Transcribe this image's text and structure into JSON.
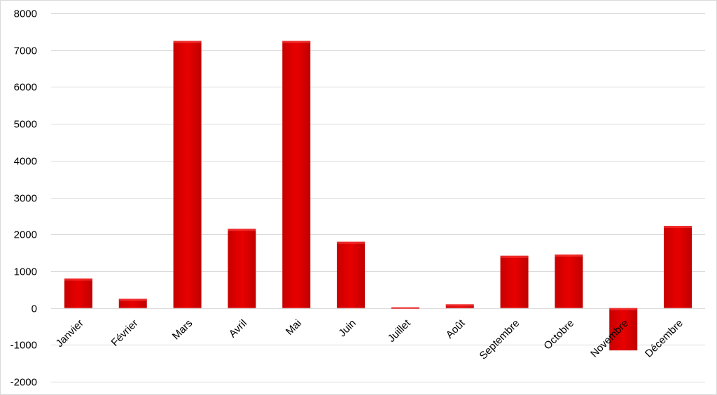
{
  "chart_data": {
    "type": "bar",
    "title": "",
    "xlabel": "",
    "ylabel": "",
    "categories": [
      "Janvier",
      "Février",
      "Mars",
      "Avril",
      "Mai",
      "Juin",
      "Juillet",
      "Août",
      "Septembre",
      "Octobre",
      "Novembre",
      "Décembre"
    ],
    "values": [
      800,
      250,
      7250,
      2150,
      7250,
      1800,
      -30,
      100,
      1420,
      1450,
      -1150,
      2230
    ],
    "ylim": [
      -2000,
      8000
    ],
    "yticks": [
      8000,
      7000,
      6000,
      5000,
      4000,
      3000,
      2000,
      1000,
      0,
      -1000,
      -2000
    ],
    "grid": true,
    "legend": "none",
    "bar_color": "#e00000",
    "bar_color_dark": "#b00000"
  }
}
